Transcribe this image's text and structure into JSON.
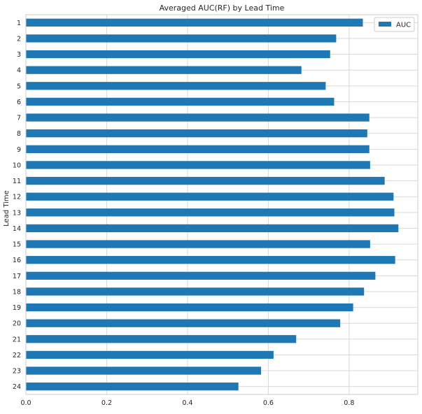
{
  "chart_data": {
    "type": "bar",
    "orientation": "horizontal",
    "title": "Averaged AUC(RF) by Lead Time",
    "xlabel": "",
    "ylabel": "Lead Time",
    "xlim": [
      0,
      0.97
    ],
    "xticks": [
      0.0,
      0.2,
      0.4,
      0.6,
      0.8
    ],
    "xtick_labels": [
      "0.0",
      "0.2",
      "0.4",
      "0.6",
      "0.8"
    ],
    "grid": true,
    "legend_position": "top-right",
    "categories": [
      "1",
      "2",
      "3",
      "4",
      "5",
      "6",
      "7",
      "8",
      "9",
      "10",
      "11",
      "12",
      "13",
      "14",
      "15",
      "16",
      "17",
      "18",
      "19",
      "20",
      "21",
      "22",
      "23",
      "24"
    ],
    "series": [
      {
        "name": "AUC",
        "color": "#1f77b4",
        "values": [
          0.834,
          0.768,
          0.753,
          0.682,
          0.742,
          0.763,
          0.85,
          0.845,
          0.85,
          0.852,
          0.888,
          0.91,
          0.912,
          0.922,
          0.852,
          0.914,
          0.865,
          0.837,
          0.81,
          0.778,
          0.669,
          0.613,
          0.582,
          0.526
        ]
      }
    ]
  },
  "colors": {
    "bar": "#1f77b4",
    "grid": "#d9d9d9",
    "axes_edge": "#cccccc",
    "text": "#262626"
  }
}
